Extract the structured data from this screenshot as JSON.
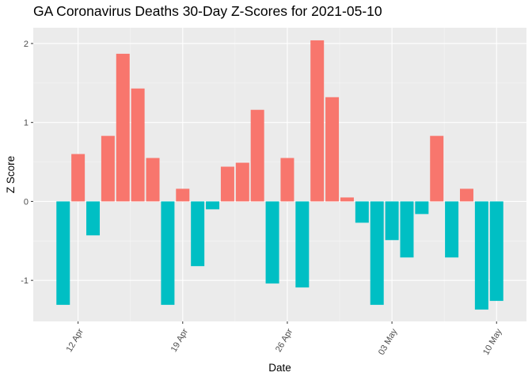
{
  "chart_data": {
    "type": "bar",
    "title": "GA Coronavirus Deaths 30-Day Z-Scores for 2021-05-10",
    "xlabel": "Date",
    "ylabel": "Z Score",
    "x_tick_labels": [
      "12 Apr",
      "19 Apr",
      "26 Apr",
      "03 May",
      "10 May"
    ],
    "x_tick_dates": [
      "2021-04-12",
      "2021-04-19",
      "2021-04-26",
      "2021-05-03",
      "2021-05-10"
    ],
    "y_ticks": [
      -1,
      0,
      1,
      2
    ],
    "ylim": [
      -1.52,
      2.2
    ],
    "xlim": [
      "2021-04-09",
      "2021-05-12"
    ],
    "grid": true,
    "legend": "none",
    "colors": {
      "positive": "#F8766D",
      "negative": "#00BFC4",
      "panel": "#EBEBEB",
      "grid_major": "#FFFFFF",
      "grid_minor": "#F5F5F5"
    },
    "x": [
      "2021-04-11",
      "2021-04-12",
      "2021-04-13",
      "2021-04-14",
      "2021-04-15",
      "2021-04-16",
      "2021-04-17",
      "2021-04-18",
      "2021-04-19",
      "2021-04-20",
      "2021-04-21",
      "2021-04-22",
      "2021-04-23",
      "2021-04-24",
      "2021-04-25",
      "2021-04-26",
      "2021-04-27",
      "2021-04-28",
      "2021-04-29",
      "2021-04-30",
      "2021-05-01",
      "2021-05-02",
      "2021-05-03",
      "2021-05-04",
      "2021-05-05",
      "2021-05-06",
      "2021-05-07",
      "2021-05-08",
      "2021-05-09",
      "2021-05-10"
    ],
    "values": [
      -1.31,
      0.6,
      -0.43,
      0.83,
      1.87,
      1.43,
      0.55,
      -1.31,
      0.16,
      -0.82,
      -0.1,
      0.44,
      0.49,
      1.16,
      -1.04,
      0.55,
      -1.09,
      2.04,
      1.32,
      0.05,
      -0.27,
      -1.31,
      -0.49,
      -0.71,
      -0.16,
      0.83,
      -0.71,
      0.16,
      -1.37,
      -1.26
    ]
  }
}
